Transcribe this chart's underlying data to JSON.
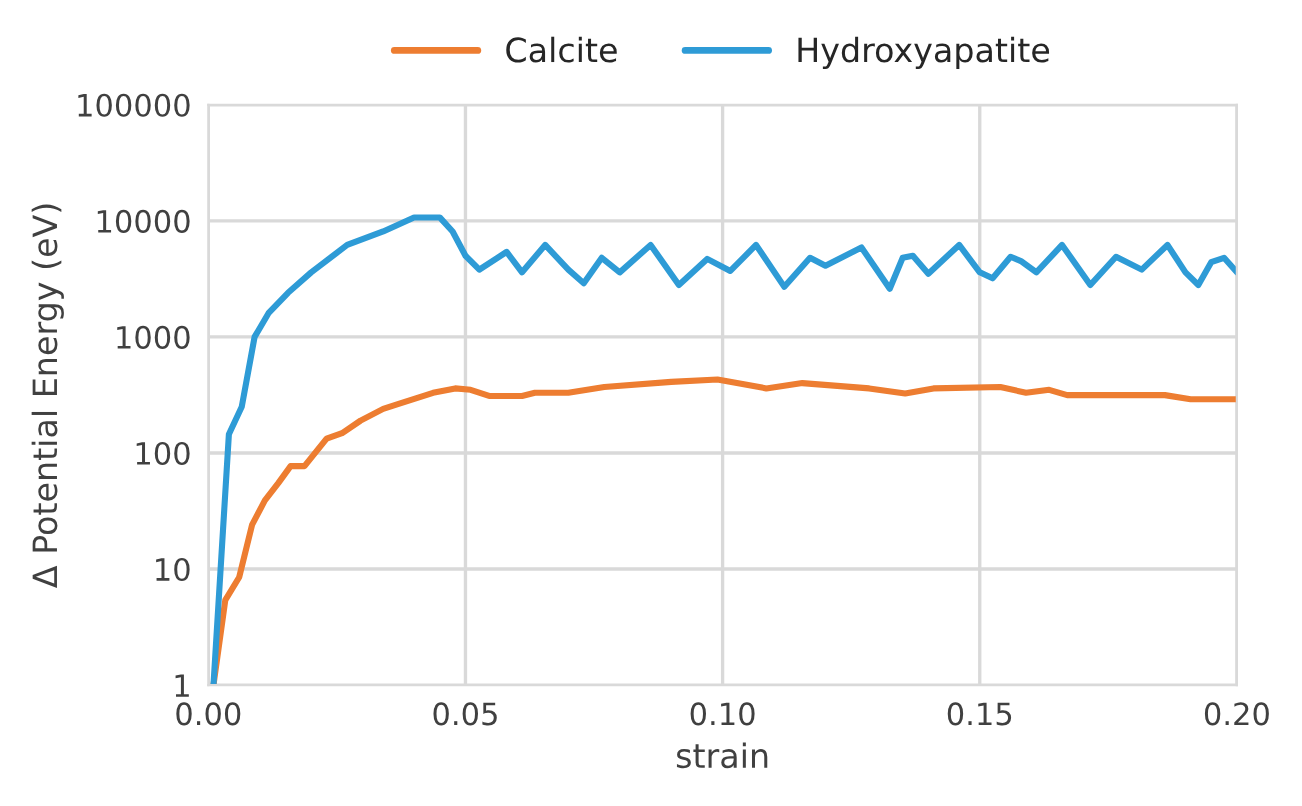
{
  "chart_data": {
    "type": "line",
    "xlabel": "strain",
    "ylabel": "Δ Potential Energy (eV)",
    "log": "y",
    "xlim": [
      0,
      0.2
    ],
    "ylim": [
      1,
      100000
    ],
    "xticks": [
      {
        "value": 0,
        "label": "0.00"
      },
      {
        "value": 0.05,
        "label": "0.05"
      },
      {
        "value": 0.1,
        "label": "0.10"
      },
      {
        "value": 0.15,
        "label": "0.15"
      },
      {
        "value": 0.2,
        "label": "0.20"
      }
    ],
    "yticks": [
      1,
      10,
      100,
      1000,
      10000,
      100000
    ],
    "grid": true,
    "legend": "top",
    "marker": "none",
    "line_style": "solid",
    "series": [
      {
        "name": "Calcite",
        "color": "#ed7d31",
        "x": [
          0.001,
          0.0033,
          0.006,
          0.0085,
          0.011,
          0.0136,
          0.016,
          0.0187,
          0.023,
          0.026,
          0.0296,
          0.034,
          0.037,
          0.0437,
          0.048,
          0.051,
          0.0546,
          0.061,
          0.0635,
          0.07,
          0.077,
          0.09,
          0.099,
          0.1085,
          0.1155,
          0.1285,
          0.1355,
          0.141,
          0.154,
          0.159,
          0.1635,
          0.167,
          0.186,
          0.191,
          0.2
        ],
        "values": [
          1,
          5.4,
          8.5,
          24,
          39,
          55,
          77,
          77,
          133,
          148,
          190,
          240,
          265,
          330,
          360,
          350,
          310,
          310,
          330,
          330,
          370,
          410,
          430,
          360,
          400,
          360,
          325,
          360,
          370,
          330,
          350,
          315,
          315,
          290,
          290
        ]
      },
      {
        "name": "Hydroxyapatite",
        "color": "#2e9bd6",
        "x": [
          0.001,
          0.004,
          0.0065,
          0.009,
          0.0117,
          0.0155,
          0.02,
          0.027,
          0.034,
          0.04,
          0.045,
          0.0475,
          0.05,
          0.0527,
          0.058,
          0.061,
          0.0655,
          0.07,
          0.073,
          0.0765,
          0.08,
          0.086,
          0.0915,
          0.097,
          0.1015,
          0.1065,
          0.112,
          0.117,
          0.12,
          0.127,
          0.1325,
          0.135,
          0.137,
          0.14,
          0.146,
          0.15,
          0.1525,
          0.156,
          0.158,
          0.161,
          0.166,
          0.1715,
          0.1765,
          0.1815,
          0.1865,
          0.19,
          0.1925,
          0.195,
          0.1975,
          0.2
        ],
        "values": [
          1,
          145,
          250,
          1000,
          1600,
          2400,
          3600,
          6200,
          8100,
          10700,
          10700,
          8100,
          5000,
          3800,
          5400,
          3600,
          6200,
          3800,
          2900,
          4800,
          3600,
          6200,
          2800,
          4700,
          3700,
          6200,
          2700,
          4800,
          4100,
          5900,
          2600,
          4800,
          5000,
          3500,
          6200,
          3600,
          3200,
          4900,
          4500,
          3600,
          6200,
          2800,
          4900,
          3800,
          6200,
          3600,
          2800,
          4400,
          4800,
          3600
        ]
      }
    ]
  }
}
